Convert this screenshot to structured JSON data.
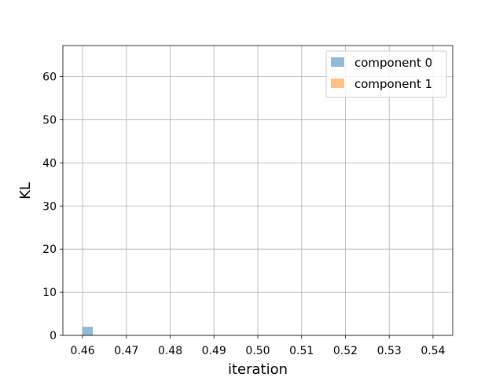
{
  "chart_data": {
    "type": "histogram",
    "xlabel": "iteration",
    "ylabel": "KL",
    "xlim": [
      0.4555,
      0.5445
    ],
    "ylim": [
      0,
      67.2
    ],
    "xticks": [
      "0.46",
      "0.47",
      "0.48",
      "0.49",
      "0.50",
      "0.51",
      "0.52",
      "0.53",
      "0.54"
    ],
    "yticks": [
      "0",
      "10",
      "20",
      "30",
      "40",
      "50",
      "60"
    ],
    "grid": true,
    "legend_position": "upper-right",
    "series": [
      {
        "name": "component 0",
        "color": "#1f77b4",
        "alpha": 0.5,
        "bin_start": 0.46,
        "bin_width": 0.00235,
        "counts": [
          2,
          0,
          0,
          0,
          0,
          0,
          0,
          0,
          0,
          0,
          0,
          0,
          0,
          0,
          0,
          0,
          0,
          0,
          0,
          0,
          0,
          0,
          0,
          0,
          0,
          0,
          0,
          0,
          0,
          0,
          0,
          0,
          0,
          0,
          0,
          0,
          0,
          0,
          0,
          0
        ]
      },
      {
        "name": "component 1",
        "color": "#ff7f0e",
        "alpha": 0.5,
        "bin_start": 0.483,
        "bin_width": 0.00235,
        "counts": []
      }
    ]
  }
}
